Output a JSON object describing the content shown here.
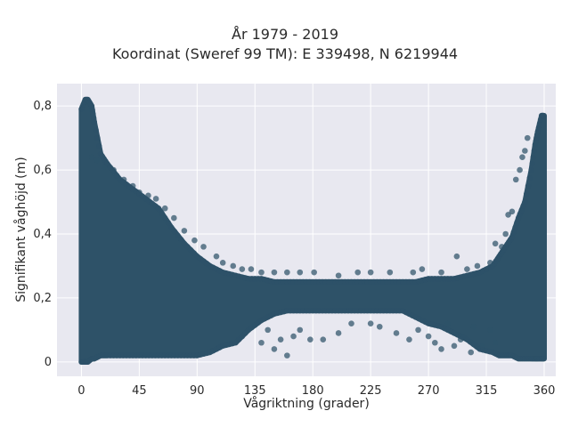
{
  "chart_data": {
    "type": "scatter",
    "title": "År 1979 - 2019",
    "subtitle": "Koordinat (Sweref 99 TM): E 339498, N 6219944",
    "xlabel": "Vågriktning (grader)",
    "ylabel": "Signifikant våghöjd (m)",
    "xlim": [
      -19,
      369
    ],
    "ylim": [
      -0.045,
      0.87
    ],
    "xticks": [
      0,
      45,
      90,
      135,
      180,
      225,
      270,
      315,
      360
    ],
    "xtick_labels": [
      "0",
      "45",
      "90",
      "135",
      "180",
      "225",
      "270",
      "315",
      "360"
    ],
    "yticks": [
      0,
      0.2,
      0.4,
      0.6,
      0.8
    ],
    "ytick_labels": [
      "0",
      "0,2",
      "0,4",
      "0,6",
      "0,8"
    ],
    "grid": true,
    "background": "#e8e8f0",
    "marker_color": "#2e5268",
    "envelope": {
      "x": [
        0,
        3,
        5,
        8,
        10,
        15,
        20,
        30,
        40,
        50,
        60,
        70,
        80,
        90,
        100,
        110,
        120,
        130,
        140,
        150,
        160,
        170,
        180,
        190,
        200,
        210,
        220,
        230,
        240,
        250,
        260,
        270,
        280,
        290,
        300,
        310,
        320,
        325,
        330,
        335,
        340,
        345,
        350,
        353,
        355,
        358,
        360
      ],
      "upper": [
        0.79,
        0.82,
        0.82,
        0.8,
        0.75,
        0.65,
        0.62,
        0.57,
        0.54,
        0.51,
        0.48,
        0.42,
        0.37,
        0.33,
        0.3,
        0.28,
        0.27,
        0.26,
        0.26,
        0.25,
        0.25,
        0.25,
        0.25,
        0.25,
        0.25,
        0.25,
        0.25,
        0.25,
        0.25,
        0.25,
        0.25,
        0.26,
        0.26,
        0.26,
        0.27,
        0.28,
        0.3,
        0.33,
        0.36,
        0.39,
        0.45,
        0.5,
        0.6,
        0.68,
        0.72,
        0.77,
        0.77
      ],
      "lower": [
        0,
        0,
        0,
        0.01,
        0.01,
        0.02,
        0.02,
        0.02,
        0.02,
        0.02,
        0.02,
        0.02,
        0.02,
        0.02,
        0.03,
        0.05,
        0.06,
        0.1,
        0.13,
        0.15,
        0.16,
        0.16,
        0.16,
        0.16,
        0.16,
        0.16,
        0.16,
        0.16,
        0.16,
        0.16,
        0.14,
        0.12,
        0.11,
        0.09,
        0.07,
        0.04,
        0.03,
        0.02,
        0.02,
        0.02,
        0.01,
        0.01,
        0.01,
        0.01,
        0.01,
        0.01,
        0.01
      ]
    },
    "outliers": [
      [
        8,
        0.64
      ],
      [
        12,
        0.63
      ],
      [
        18,
        0.61
      ],
      [
        25,
        0.6
      ],
      [
        33,
        0.57
      ],
      [
        40,
        0.55
      ],
      [
        45,
        0.53
      ],
      [
        52,
        0.52
      ],
      [
        58,
        0.51
      ],
      [
        65,
        0.48
      ],
      [
        72,
        0.45
      ],
      [
        80,
        0.41
      ],
      [
        88,
        0.38
      ],
      [
        95,
        0.36
      ],
      [
        105,
        0.33
      ],
      [
        110,
        0.31
      ],
      [
        118,
        0.3
      ],
      [
        125,
        0.29
      ],
      [
        132,
        0.29
      ],
      [
        140,
        0.28
      ],
      [
        150,
        0.28
      ],
      [
        160,
        0.28
      ],
      [
        170,
        0.28
      ],
      [
        181,
        0.28
      ],
      [
        200,
        0.27
      ],
      [
        215,
        0.28
      ],
      [
        225,
        0.28
      ],
      [
        240,
        0.28
      ],
      [
        258,
        0.28
      ],
      [
        265,
        0.29
      ],
      [
        280,
        0.28
      ],
      [
        292,
        0.33
      ],
      [
        300,
        0.29
      ],
      [
        308,
        0.3
      ],
      [
        318,
        0.31
      ],
      [
        322,
        0.37
      ],
      [
        327,
        0.36
      ],
      [
        330,
        0.4
      ],
      [
        332,
        0.46
      ],
      [
        335,
        0.47
      ],
      [
        338,
        0.57
      ],
      [
        341,
        0.6
      ],
      [
        343,
        0.64
      ],
      [
        345,
        0.66
      ],
      [
        347,
        0.7
      ],
      [
        125,
        0.08
      ],
      [
        140,
        0.06
      ],
      [
        145,
        0.1
      ],
      [
        150,
        0.04
      ],
      [
        155,
        0.07
      ],
      [
        160,
        0.02
      ],
      [
        165,
        0.08
      ],
      [
        170,
        0.1
      ],
      [
        178,
        0.07
      ],
      [
        188,
        0.07
      ],
      [
        200,
        0.09
      ],
      [
        210,
        0.12
      ],
      [
        225,
        0.12
      ],
      [
        232,
        0.11
      ],
      [
        245,
        0.09
      ],
      [
        255,
        0.07
      ],
      [
        262,
        0.1
      ],
      [
        270,
        0.08
      ],
      [
        275,
        0.06
      ],
      [
        280,
        0.04
      ],
      [
        285,
        0.12
      ],
      [
        290,
        0.05
      ],
      [
        295,
        0.07
      ],
      [
        303,
        0.03
      ],
      [
        305,
        0.11
      ],
      [
        312,
        0.05
      ],
      [
        318,
        0.1
      ],
      [
        322,
        0.06
      ]
    ]
  }
}
